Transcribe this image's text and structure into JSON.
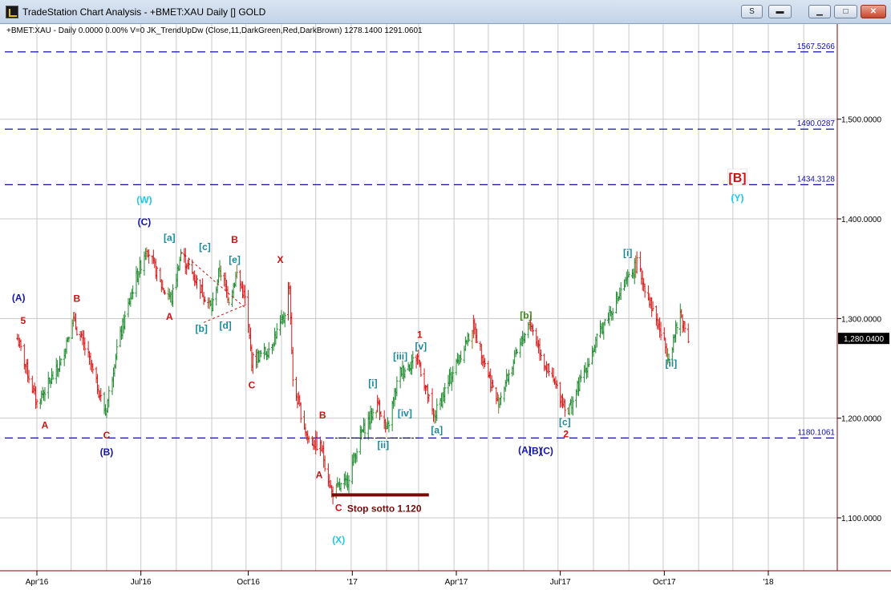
{
  "window": {
    "title": "TradeStation Chart Analysis - +BMET:XAU Daily [] GOLD",
    "buttons": {
      "style_label": "S",
      "line_label": "▬"
    }
  },
  "chart_data": {
    "type": "bar",
    "style": "ohlc",
    "symbol_header": "+BMET:XAU - Daily  0.0000  0.00%  V=0  JK_TrendUpDw (Close,11,DarkGreen,Red,DarkBrown)  1278.1400  1291.0601",
    "ylim": [
      1050,
      1570
    ],
    "y_ticks": [
      {
        "value": 1100,
        "label": "1,100.0000"
      },
      {
        "value": 1200,
        "label": "1,200.0000"
      },
      {
        "value": 1300,
        "label": "1,300.0000"
      },
      {
        "value": 1400,
        "label": "1,400.0000"
      },
      {
        "value": 1500,
        "label": "1,500.0000"
      }
    ],
    "last_price": {
      "value": 1280.04,
      "label": "1,280.0400"
    },
    "x_ticks": [
      {
        "x": "2016-04-01",
        "label": "Apr'16"
      },
      {
        "x": "2016-07-01",
        "label": "Jul'16"
      },
      {
        "x": "2016-10-03",
        "label": "Oct'16"
      },
      {
        "x": "2017-01-02",
        "label": "'17"
      },
      {
        "x": "2017-04-03",
        "label": "Apr'17"
      },
      {
        "x": "2017-07-03",
        "label": "Jul'17"
      },
      {
        "x": "2017-10-02",
        "label": "Oct'17"
      },
      {
        "x": "2018-01-01",
        "label": "'18"
      }
    ],
    "h_levels": [
      {
        "value": 1567.5266,
        "label": "1567.5266"
      },
      {
        "value": 1490.0287,
        "label": "1490.0287"
      },
      {
        "value": 1434.3128,
        "label": "1434.3128"
      },
      {
        "value": 1180.1061,
        "label": "1180.1061"
      }
    ],
    "price_path": [
      [
        "2016-03-15",
        1280
      ],
      [
        "2016-04-01",
        1215
      ],
      [
        "2016-04-22",
        1255
      ],
      [
        "2016-05-02",
        1300
      ],
      [
        "2016-05-15",
        1265
      ],
      [
        "2016-05-31",
        1205
      ],
      [
        "2016-06-10",
        1270
      ],
      [
        "2016-06-24",
        1330
      ],
      [
        "2016-07-06",
        1372
      ],
      [
        "2016-07-20",
        1330
      ],
      [
        "2016-07-28",
        1320
      ],
      [
        "2016-08-05",
        1365
      ],
      [
        "2016-08-20",
        1335
      ],
      [
        "2016-09-01",
        1310
      ],
      [
        "2016-09-08",
        1350
      ],
      [
        "2016-09-16",
        1320
      ],
      [
        "2016-09-23",
        1345
      ],
      [
        "2016-09-30",
        1320
      ],
      [
        "2016-10-06",
        1258
      ],
      [
        "2016-10-20",
        1268
      ],
      [
        "2016-11-03",
        1300
      ],
      [
        "2016-11-08",
        1335
      ],
      [
        "2016-11-11",
        1235
      ],
      [
        "2016-11-24",
        1180
      ],
      [
        "2016-12-06",
        1170
      ],
      [
        "2016-12-15",
        1125
      ],
      [
        "2016-12-28",
        1135
      ],
      [
        "2017-01-10",
        1185
      ],
      [
        "2017-01-25",
        1215
      ],
      [
        "2017-02-01",
        1185
      ],
      [
        "2017-02-12",
        1245
      ],
      [
        "2017-02-22",
        1255
      ],
      [
        "2017-02-28",
        1262
      ],
      [
        "2017-03-14",
        1200
      ],
      [
        "2017-04-05",
        1260
      ],
      [
        "2017-04-18",
        1292
      ],
      [
        "2017-05-09",
        1215
      ],
      [
        "2017-06-06",
        1297
      ],
      [
        "2017-06-21",
        1250
      ],
      [
        "2017-07-10",
        1207
      ],
      [
        "2017-08-10",
        1295
      ],
      [
        "2017-09-08",
        1355
      ],
      [
        "2017-10-06",
        1262
      ],
      [
        "2017-10-16",
        1305
      ],
      [
        "2017-10-23",
        1280
      ]
    ],
    "trendlines": [
      {
        "from": [
          "2016-08-05",
          1367
        ],
        "to": [
          "2016-10-01",
          1310
        ],
        "color": "#d01010",
        "dash": "3,3"
      },
      {
        "from": [
          "2016-08-25",
          1296
        ],
        "to": [
          "2016-10-01",
          1314
        ],
        "color": "#d01010",
        "dash": "3,3"
      },
      {
        "from": [
          "2016-12-18",
          1180
        ],
        "to": [
          "2017-03-01",
          1180
        ],
        "color": "#000000",
        "dash": "3,2"
      }
    ],
    "stop_line": {
      "from": [
        "2016-12-15",
        1123
      ],
      "to": [
        "2017-03-10",
        1123
      ],
      "color": "#7a0a0a"
    },
    "annotations": [
      {
        "x": "2016-03-16",
        "y": 1321,
        "text": "(A)",
        "color": "#1515b0"
      },
      {
        "x": "2016-03-20",
        "y": 1298,
        "text": "5",
        "color": "#d01010"
      },
      {
        "x": "2016-04-08",
        "y": 1193,
        "text": "A",
        "color": "#d01010"
      },
      {
        "x": "2016-05-06",
        "y": 1320,
        "text": "B",
        "color": "#d01010"
      },
      {
        "x": "2016-06-01",
        "y": 1183,
        "text": "C",
        "color": "#d01010"
      },
      {
        "x": "2016-06-01",
        "y": 1166,
        "text": "(B)",
        "color": "#1515b0"
      },
      {
        "x": "2016-07-04",
        "y": 1419,
        "text": "(W)",
        "color": "#20c8e8"
      },
      {
        "x": "2016-07-04",
        "y": 1397,
        "text": "(C)",
        "color": "#1515b0"
      },
      {
        "x": "2016-07-26",
        "y": 1381,
        "text": "[a]",
        "color": "#1a8a9a"
      },
      {
        "x": "2016-07-26",
        "y": 1302,
        "text": "A",
        "color": "#d01010"
      },
      {
        "x": "2016-08-26",
        "y": 1372,
        "text": "[c]",
        "color": "#1a8a9a"
      },
      {
        "x": "2016-09-21",
        "y": 1379,
        "text": "B",
        "color": "#d01010"
      },
      {
        "x": "2016-09-21",
        "y": 1359,
        "text": "[e]",
        "color": "#1a8a9a"
      },
      {
        "x": "2016-08-23",
        "y": 1290,
        "text": "[b]",
        "color": "#1a8a9a"
      },
      {
        "x": "2016-09-13",
        "y": 1293,
        "text": "[d]",
        "color": "#1a8a9a"
      },
      {
        "x": "2016-10-06",
        "y": 1233,
        "text": "C",
        "color": "#d01010"
      },
      {
        "x": "2016-10-31",
        "y": 1359,
        "text": "X",
        "color": "#d01010"
      },
      {
        "x": "2016-12-07",
        "y": 1203,
        "text": "B",
        "color": "#d01010"
      },
      {
        "x": "2016-12-04",
        "y": 1143,
        "text": "A",
        "color": "#d01010"
      },
      {
        "x": "2016-12-21",
        "y": 1110,
        "text": "C",
        "color": "#d01010"
      },
      {
        "x": "2016-12-21",
        "y": 1078,
        "text": "(X)",
        "color": "#20c8e8"
      },
      {
        "x": "2017-01-20",
        "y": 1235,
        "text": "[i]",
        "color": "#1a8a9a"
      },
      {
        "x": "2017-01-29",
        "y": 1173,
        "text": "[ii]",
        "color": "#1a8a9a"
      },
      {
        "x": "2017-02-13",
        "y": 1262,
        "text": "[iii]",
        "color": "#1a8a9a"
      },
      {
        "x": "2017-02-17",
        "y": 1205,
        "text": "[iv]",
        "color": "#1a8a9a"
      },
      {
        "x": "2017-03-02",
        "y": 1284,
        "text": "1",
        "color": "#d01010"
      },
      {
        "x": "2017-03-03",
        "y": 1272,
        "text": "[v]",
        "color": "#1a8a9a"
      },
      {
        "x": "2017-03-17",
        "y": 1188,
        "text": "[a]",
        "color": "#1a8a9a"
      },
      {
        "x": "2017-06-03",
        "y": 1303,
        "text": "[b]",
        "color": "#3a8a1a"
      },
      {
        "x": "2017-06-02",
        "y": 1168,
        "text": "(A)",
        "color": "#1515b0"
      },
      {
        "x": "2017-06-11",
        "y": 1167,
        "text": "(B)",
        "color": "#1515b0"
      },
      {
        "x": "2017-06-21",
        "y": 1167,
        "text": "(C)",
        "color": "#1515b0"
      },
      {
        "x": "2017-07-07",
        "y": 1196,
        "text": "[c]",
        "color": "#1a8a9a"
      },
      {
        "x": "2017-07-08",
        "y": 1184,
        "text": "2",
        "color": "#d01010"
      },
      {
        "x": "2017-08-31",
        "y": 1366,
        "text": "[i]",
        "color": "#1a8a9a"
      },
      {
        "x": "2017-10-08",
        "y": 1255,
        "text": "[ii]",
        "color": "#1a8a9a"
      },
      {
        "x": "2017-12-05",
        "y": 1437,
        "text": "[B]",
        "color": "#d01010",
        "box": true
      },
      {
        "x": "2017-12-05",
        "y": 1421,
        "text": "(Y)",
        "color": "#20c8e8"
      }
    ],
    "stop_label": {
      "x": "2017-01-30",
      "y": 1106,
      "text": "Stop sotto 1.120",
      "color": "#7a0a0a"
    }
  }
}
